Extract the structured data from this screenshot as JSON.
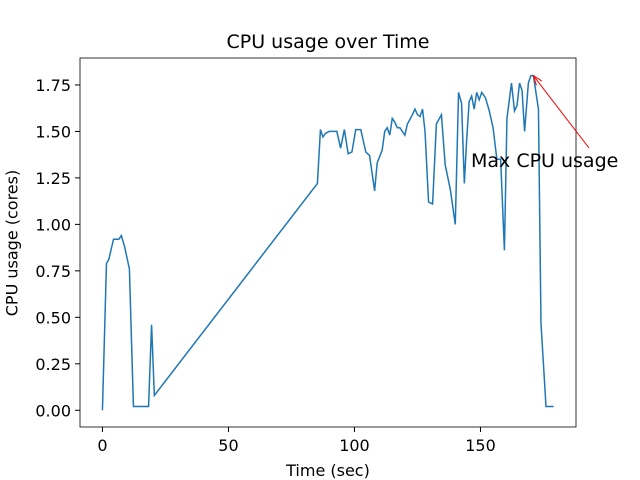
{
  "chart_data": {
    "type": "line",
    "title": "CPU usage over Time",
    "xlabel": "Time (sec)",
    "ylabel": "CPU usage (cores)",
    "x": [
      0,
      1.6,
      2.5,
      4.4,
      5.5,
      6.5,
      7.5,
      8.8,
      10.7,
      12.3,
      14,
      18.3,
      19.5,
      20.6,
      85.3,
      86.5,
      87.5,
      88.5,
      90,
      92,
      93,
      94.5,
      96,
      97.5,
      99,
      100.5,
      102.5,
      104.5,
      106,
      108,
      109,
      111,
      112,
      113,
      114,
      115,
      116,
      117,
      118,
      120,
      121,
      123,
      124,
      125,
      126,
      127,
      128,
      129.4,
      131,
      132.5,
      134.5,
      136,
      138,
      140,
      141.3,
      142.5,
      143.6,
      144.5,
      145.5,
      146.5,
      147.5,
      148.5,
      149.5,
      150.5,
      152,
      153.5,
      155,
      156.5,
      158,
      159.5,
      160.5,
      162.3,
      163.5,
      164.5,
      165.5,
      166.5,
      167.5,
      169,
      170,
      171,
      173,
      174,
      176,
      179
    ],
    "series": [
      {
        "name": "cpu",
        "color": "#1f77b4",
        "values": [
          0.0,
          0.79,
          0.81,
          0.92,
          0.92,
          0.92,
          0.94,
          0.88,
          0.76,
          0.02,
          0.02,
          0.02,
          0.46,
          0.08,
          1.22,
          1.51,
          1.47,
          1.49,
          1.5,
          1.5,
          1.5,
          1.41,
          1.51,
          1.38,
          1.39,
          1.51,
          1.51,
          1.39,
          1.37,
          1.18,
          1.33,
          1.4,
          1.5,
          1.52,
          1.48,
          1.57,
          1.55,
          1.52,
          1.52,
          1.48,
          1.54,
          1.59,
          1.62,
          1.59,
          1.58,
          1.62,
          1.5,
          1.12,
          1.11,
          1.54,
          1.59,
          1.32,
          1.19,
          1.0,
          1.71,
          1.65,
          1.22,
          1.45,
          1.66,
          1.69,
          1.62,
          1.71,
          1.67,
          1.71,
          1.68,
          1.61,
          1.52,
          1.35,
          1.35,
          0.86,
          1.57,
          1.76,
          1.61,
          1.64,
          1.76,
          1.72,
          1.5,
          1.76,
          1.8,
          1.8,
          1.62,
          0.47,
          0.02,
          0.02
        ]
      }
    ],
    "xlim": [
      -8.9,
      187.9
    ],
    "ylim": [
      -0.09,
      1.895
    ],
    "xticks": [
      0,
      50,
      100,
      150
    ],
    "yticks": [
      {
        "value": 0,
        "label": "0.00"
      },
      {
        "value": 0.25,
        "label": "0.25"
      },
      {
        "value": 0.5,
        "label": "0.50"
      },
      {
        "value": 0.75,
        "label": "0.75"
      },
      {
        "value": 1,
        "label": "1.00"
      },
      {
        "value": 1.25,
        "label": "1.25"
      },
      {
        "value": 1.5,
        "label": "1.50"
      },
      {
        "value": 1.75,
        "label": "1.75"
      }
    ],
    "annotation": {
      "text": "Max CPU usage",
      "xy": [
        171,
        1.8
      ],
      "color": "#ff0000"
    }
  }
}
